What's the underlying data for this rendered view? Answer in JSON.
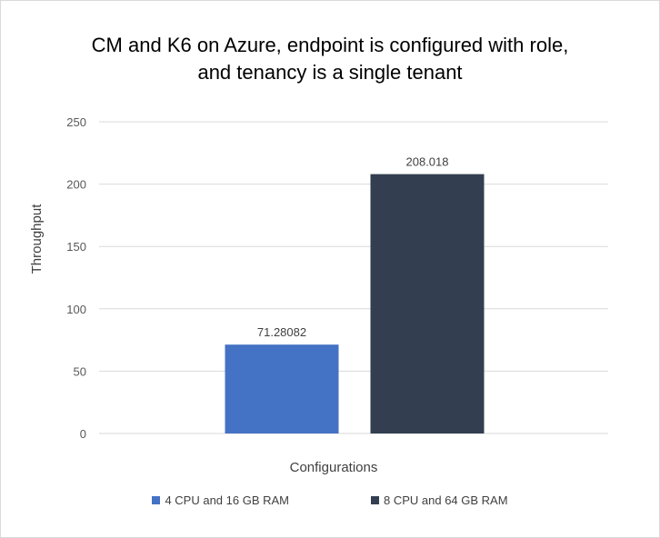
{
  "chart_data": {
    "type": "bar",
    "title_lines": [
      "CM and K6 on Azure, endpoint is configured with role,",
      "and tenancy is a single tenant"
    ],
    "xlabel": "Configurations",
    "ylabel": "Throughput",
    "ylim": [
      0,
      250
    ],
    "yticks": [
      0,
      50,
      100,
      150,
      200,
      250
    ],
    "ytick_labels": [
      "0",
      "50",
      "100",
      "150",
      "200",
      "250"
    ],
    "grid": true,
    "legend_placement": "bottom",
    "series": [
      {
        "name": "4 CPU and 16 GB RAM",
        "value": 71.28082,
        "label": "71.28082",
        "color": "#4472c4"
      },
      {
        "name": "8 CPU and 64 GB RAM",
        "value": 208.018,
        "label": "208.018",
        "color": "#333f50"
      }
    ]
  }
}
